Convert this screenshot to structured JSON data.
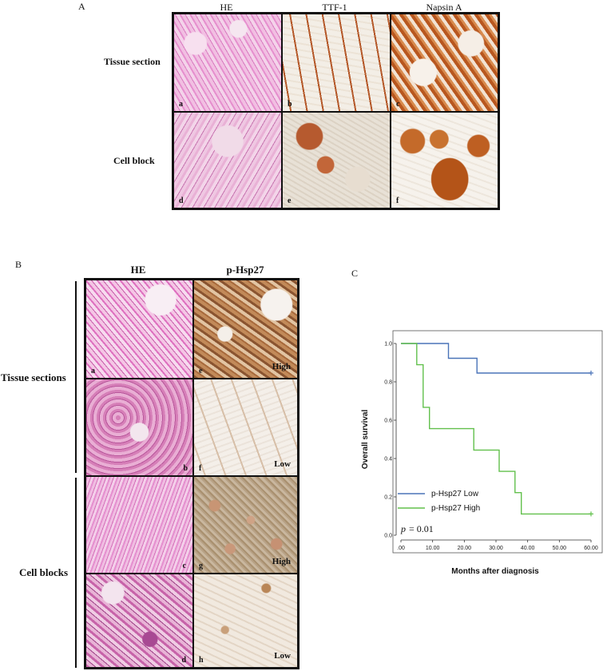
{
  "panel_a": {
    "letter": "A",
    "columns": [
      "HE",
      "TTF-1",
      "Napsin A"
    ],
    "rows": [
      "Tissue section",
      "Cell block"
    ],
    "tiles": [
      "a",
      "b",
      "c",
      "d",
      "e",
      "f"
    ]
  },
  "panel_b": {
    "letter": "B",
    "columns": [
      "HE",
      "p-Hsp27"
    ],
    "groups": [
      "Tissue sections",
      "Cell blocks"
    ],
    "tiles": [
      {
        "letter": "a",
        "grade": ""
      },
      {
        "letter": "e",
        "grade": "High"
      },
      {
        "letter": "b",
        "grade": ""
      },
      {
        "letter": "f",
        "grade": "Low"
      },
      {
        "letter": "c",
        "grade": ""
      },
      {
        "letter": "g",
        "grade": "High"
      },
      {
        "letter": "d",
        "grade": ""
      },
      {
        "letter": "h",
        "grade": "Low"
      }
    ]
  },
  "panel_c": {
    "letter": "C"
  },
  "chart_data": {
    "type": "line",
    "xlabel": "Months after diagnosis",
    "ylabel": "Overall survival",
    "xticks": [
      ".00",
      "10.00",
      "20.00",
      "30.00",
      "40.00",
      "50.00",
      "60.00"
    ],
    "yticks": [
      "0.0",
      "0.2",
      "0.4",
      "0.6",
      "0.8",
      "1.0"
    ],
    "xlim": [
      0,
      60
    ],
    "ylim": [
      0,
      1.0
    ],
    "step": true,
    "series": [
      {
        "name": "p-Hsp27 Low",
        "color": "#4a73b8",
        "x": [
          0,
          15,
          15,
          24,
          24,
          60
        ],
        "y": [
          1.0,
          1.0,
          0.923,
          0.923,
          0.846,
          0.846
        ],
        "censored": [
          [
            60,
            0.846
          ]
        ]
      },
      {
        "name": "p-Hsp27 High",
        "color": "#62c04c",
        "x": [
          0,
          5,
          5,
          7,
          7,
          9,
          9,
          23,
          23,
          31,
          31,
          36,
          36,
          38,
          38,
          60
        ],
        "y": [
          1.0,
          1.0,
          0.889,
          0.889,
          0.667,
          0.667,
          0.556,
          0.556,
          0.444,
          0.444,
          0.333,
          0.333,
          0.222,
          0.222,
          0.111,
          0.111
        ],
        "censored": [
          [
            60,
            0.111
          ]
        ]
      }
    ],
    "annotation_p": "p",
    "annotation_value": "= 0.01",
    "legend_placement": "bottom-left"
  }
}
